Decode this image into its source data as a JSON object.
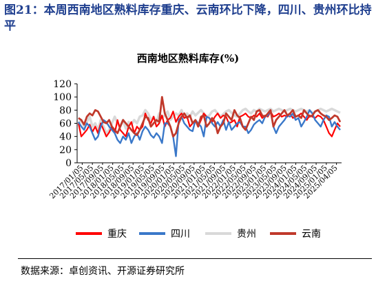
{
  "figure": {
    "title": "图21：本周西南地区熟料库存重庆、云南环比下降，四川、贵州环比持平",
    "source": "数据来源：卓创资讯、开源证券研究所"
  },
  "chart_data": {
    "type": "line",
    "title": "西南地区熟料库存(%)",
    "xlabel": "",
    "ylabel": "",
    "ylim": [
      0,
      120
    ],
    "yticks": [
      0,
      20,
      40,
      60,
      80,
      100,
      120
    ],
    "grid": false,
    "legend_position": "bottom",
    "x_tick_labels": [
      "2017/01/05",
      "2017/05/05",
      "2017/09/05",
      "2018/01/05",
      "2018/05/05",
      "2018/09/05",
      "2019/01/05",
      "2019/05/05",
      "2019/09/05",
      "2020/01/05",
      "2020/05/05",
      "2020/09/05",
      "2021/01/05",
      "2021/05/05",
      "2021/09/05",
      "2022/01/05",
      "2022/05/05",
      "2022/09/05",
      "2023/01/05",
      "2023/05/05",
      "2023/09/05",
      "2024/01/05",
      "2024/05/05",
      "2024/09/05",
      "2025/01/05",
      "2025/04/05"
    ],
    "series": [
      {
        "name": "重庆",
        "color": "#ff0000",
        "values": [
          60,
          40,
          45,
          50,
          58,
          47,
          55,
          45,
          60,
          50,
          40,
          46,
          55,
          45,
          65,
          50,
          45,
          40,
          55,
          62,
          45,
          55,
          50,
          55,
          75,
          65,
          60,
          70,
          55,
          60,
          72,
          55,
          65,
          68,
          78,
          62,
          70,
          75,
          68,
          70,
          55,
          60,
          65,
          55,
          65,
          75,
          70,
          68,
          62,
          70,
          75,
          68,
          72,
          70,
          60,
          62,
          65,
          55,
          70,
          72,
          75,
          70,
          68,
          72,
          70,
          75,
          68,
          72,
          70,
          78,
          70,
          72,
          75,
          70,
          72,
          70,
          75,
          68,
          70,
          72,
          75,
          70,
          65,
          72,
          70,
          68,
          72,
          70,
          65,
          55,
          45,
          40,
          50,
          60,
          55
        ]
      },
      {
        "name": "四川",
        "color": "#3a78c9",
        "values": [
          62,
          55,
          50,
          60,
          55,
          45,
          35,
          40,
          55,
          65,
          62,
          55,
          50,
          45,
          35,
          30,
          40,
          35,
          45,
          30,
          40,
          45,
          35,
          48,
          55,
          50,
          42,
          38,
          45,
          40,
          30,
          60,
          60,
          55,
          40,
          10,
          65,
          70,
          60,
          55,
          50,
          48,
          65,
          60,
          55,
          40,
          70,
          68,
          60,
          55,
          62,
          55,
          65,
          50,
          62,
          50,
          55,
          60,
          62,
          55,
          55,
          45,
          50,
          58,
          62,
          65,
          60,
          70,
          72,
          80,
          55,
          45,
          55,
          60,
          65,
          72,
          70,
          75,
          65,
          68,
          55,
          62,
          70,
          80,
          75,
          65,
          60,
          55,
          65,
          72,
          70,
          55,
          62,
          55,
          50
        ]
      },
      {
        "name": "贵州",
        "color": "#d9d9d9",
        "values": [
          60,
          65,
          55,
          62,
          70,
          55,
          60,
          50,
          65,
          55,
          45,
          50,
          60,
          70,
          60,
          55,
          65,
          52,
          62,
          58,
          65,
          60,
          70,
          72,
          80,
          75,
          65,
          70,
          62,
          75,
          68,
          72,
          78,
          65,
          70,
          75,
          72,
          80,
          68,
          75,
          70,
          78,
          72,
          76,
          80,
          75,
          70,
          72,
          78,
          80,
          75,
          70,
          74,
          78,
          80,
          76,
          72,
          70,
          75,
          80,
          82,
          78,
          75,
          80,
          78,
          82,
          80,
          78,
          80,
          82,
          78,
          80,
          82,
          80,
          78,
          80,
          82,
          80,
          78,
          80,
          82,
          80,
          78,
          80,
          75,
          78,
          80,
          82,
          80,
          78,
          80,
          82,
          80,
          78,
          76
        ]
      },
      {
        "name": "云南",
        "color": "#c0392b",
        "values": [
          68,
          65,
          58,
          70,
          75,
          72,
          80,
          78,
          70,
          62,
          60,
          65,
          55,
          50,
          45,
          55,
          65,
          60,
          55,
          50,
          45,
          42,
          50,
          60,
          70,
          68,
          55,
          60,
          65,
          62,
          100,
          75,
          65,
          55,
          40,
          45,
          60,
          70,
          75,
          68,
          72,
          60,
          65,
          55,
          70,
          72,
          55,
          60,
          68,
          62,
          45,
          55,
          60,
          75,
          70,
          65,
          80,
          72,
          68,
          55,
          50,
          60,
          70,
          65,
          78,
          80,
          72,
          70,
          75,
          80,
          55,
          65,
          70,
          75,
          80,
          72,
          75,
          80,
          70,
          72,
          68,
          80,
          75,
          70,
          72,
          78,
          80,
          75,
          72,
          70,
          65,
          68,
          72,
          70,
          62
        ]
      }
    ]
  }
}
